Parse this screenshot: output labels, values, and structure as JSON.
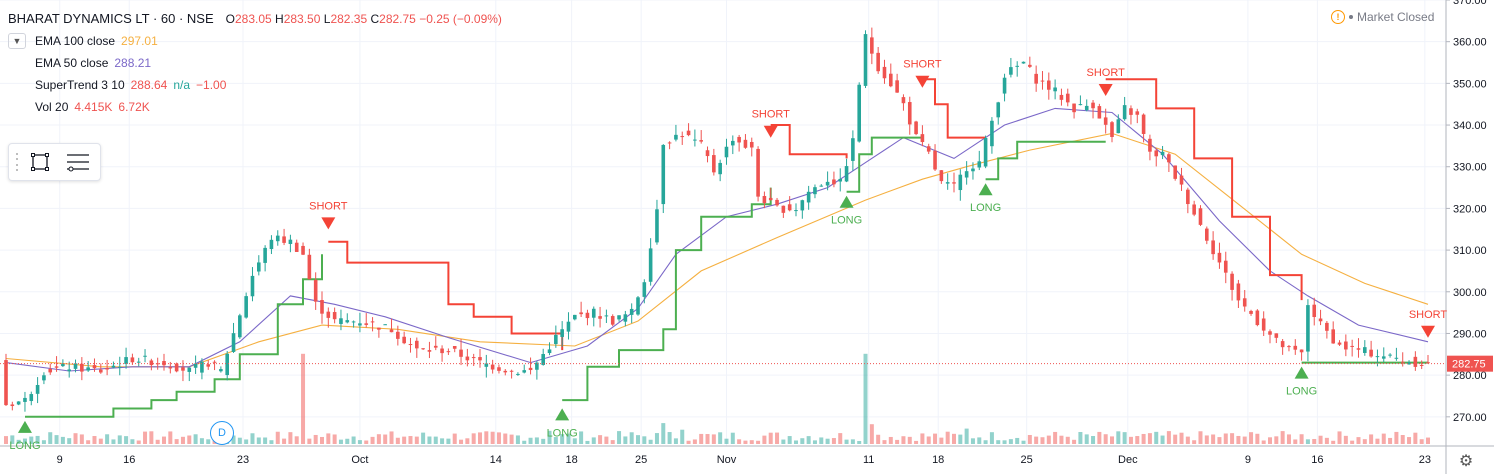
{
  "header": {
    "title": "BHARAT DYNAMICS LT · 60 · NSE",
    "open_label": "O",
    "open": "283.05",
    "high_label": "H",
    "high": "283.50",
    "low_label": "L",
    "low": "282.35",
    "close_label": "C",
    "close": "282.75",
    "change": "−0.25 (−0.09%)"
  },
  "legend": {
    "collapse_icon": "chevron-down-icon",
    "items": [
      {
        "label": "EMA 100 close",
        "values": [
          "297.01"
        ],
        "colors": [
          "#f5b041"
        ]
      },
      {
        "label": "EMA 50 close",
        "values": [
          "288.21"
        ],
        "colors": [
          "#7b68c8"
        ]
      },
      {
        "label": "SuperTrend 3 10",
        "values": [
          "288.64",
          "n/a",
          "−1.00"
        ],
        "colors": [
          "#ef5350",
          "#26a69a",
          "#ef5350"
        ]
      },
      {
        "label": "Vol 20",
        "values": [
          "4.415K",
          "6.72K"
        ],
        "colors": [
          "#ef5350",
          "#ef5350"
        ]
      }
    ]
  },
  "toolbox": {
    "icons": [
      "drag-grip-icon",
      "rectangle-icon",
      "list-lines-icon"
    ]
  },
  "market_status": {
    "icon": "warning-circle-icon",
    "text": "Market Closed"
  },
  "d_marker": "D",
  "settings_icon": "gear-icon",
  "colors": {
    "up": "#26a69a",
    "down": "#ef5350",
    "ema100": "#f5b041",
    "ema50": "#7b68c8",
    "st_up": "#4caf50",
    "st_down": "#f44336",
    "grid": "#f0f3fa",
    "price_line": "#ef5350"
  },
  "chart_data": {
    "type": "candlestick",
    "symbol": "BHARAT DYNAMICS LT",
    "interval": "60",
    "exchange": "NSE",
    "ylim": [
      263,
      370
    ],
    "y_ticks": [
      270,
      280,
      290,
      300,
      310,
      320,
      330,
      340,
      350,
      360,
      370
    ],
    "y_tick_labels": [
      "270.00",
      "280.00",
      "290.00",
      "300.00",
      "310.00",
      "320.00",
      "330.00",
      "340.00",
      "350.00",
      "360.00",
      "370.00"
    ],
    "x_tick_labels": [
      "9",
      "16",
      "23",
      "Oct",
      "14",
      "18",
      "25",
      "Nov",
      "11",
      "18",
      "25",
      "Dec",
      "9",
      "16",
      "23"
    ],
    "last_price": "282.75",
    "close_series": [
      {
        "t": 0,
        "v": 273
      },
      {
        "t": 3,
        "v": 274
      },
      {
        "t": 6,
        "v": 281
      },
      {
        "t": 10,
        "v": 282
      },
      {
        "t": 15,
        "v": 281
      },
      {
        "t": 20,
        "v": 284
      },
      {
        "t": 25,
        "v": 283
      },
      {
        "t": 29,
        "v": 281
      },
      {
        "t": 32,
        "v": 283
      },
      {
        "t": 34,
        "v": 281
      },
      {
        "t": 36,
        "v": 290
      },
      {
        "t": 39,
        "v": 304
      },
      {
        "t": 42,
        "v": 313
      },
      {
        "t": 45,
        "v": 312
      },
      {
        "t": 47,
        "v": 309
      },
      {
        "t": 49,
        "v": 297
      },
      {
        "t": 52,
        "v": 293
      },
      {
        "t": 56,
        "v": 293
      },
      {
        "t": 61,
        "v": 291
      },
      {
        "t": 65,
        "v": 286
      },
      {
        "t": 70,
        "v": 286
      },
      {
        "t": 75,
        "v": 283
      },
      {
        "t": 80,
        "v": 281
      },
      {
        "t": 83,
        "v": 281
      },
      {
        "t": 85,
        "v": 285
      },
      {
        "t": 87,
        "v": 289
      },
      {
        "t": 90,
        "v": 294
      },
      {
        "t": 93,
        "v": 295
      },
      {
        "t": 96,
        "v": 293
      },
      {
        "t": 99,
        "v": 295
      },
      {
        "t": 101,
        "v": 303
      },
      {
        "t": 103,
        "v": 320
      },
      {
        "t": 104,
        "v": 336
      },
      {
        "t": 107,
        "v": 338
      },
      {
        "t": 110,
        "v": 335
      },
      {
        "t": 112,
        "v": 329
      },
      {
        "t": 115,
        "v": 337
      },
      {
        "t": 118,
        "v": 334
      },
      {
        "t": 119,
        "v": 323
      },
      {
        "t": 122,
        "v": 320
      },
      {
        "t": 125,
        "v": 320
      },
      {
        "t": 127,
        "v": 324
      },
      {
        "t": 130,
        "v": 327
      },
      {
        "t": 132,
        "v": 326
      },
      {
        "t": 134,
        "v": 336
      },
      {
        "t": 135,
        "v": 350
      },
      {
        "t": 136,
        "v": 361
      },
      {
        "t": 138,
        "v": 354
      },
      {
        "t": 140,
        "v": 350
      },
      {
        "t": 142,
        "v": 345
      },
      {
        "t": 144,
        "v": 337
      },
      {
        "t": 146,
        "v": 333
      },
      {
        "t": 148,
        "v": 326
      },
      {
        "t": 150,
        "v": 325
      },
      {
        "t": 152,
        "v": 330
      },
      {
        "t": 154,
        "v": 331
      },
      {
        "t": 156,
        "v": 341
      },
      {
        "t": 158,
        "v": 352
      },
      {
        "t": 161,
        "v": 355
      },
      {
        "t": 163,
        "v": 351
      },
      {
        "t": 166,
        "v": 348
      },
      {
        "t": 169,
        "v": 344
      },
      {
        "t": 172,
        "v": 345
      },
      {
        "t": 175,
        "v": 337
      },
      {
        "t": 177,
        "v": 344
      },
      {
        "t": 179,
        "v": 342
      },
      {
        "t": 181,
        "v": 333
      },
      {
        "t": 183,
        "v": 333
      },
      {
        "t": 186,
        "v": 325
      },
      {
        "t": 189,
        "v": 316
      },
      {
        "t": 192,
        "v": 307
      },
      {
        "t": 195,
        "v": 298
      },
      {
        "t": 198,
        "v": 293
      },
      {
        "t": 201,
        "v": 288
      },
      {
        "t": 203,
        "v": 286
      },
      {
        "t": 205,
        "v": 285
      },
      {
        "t": 206,
        "v": 297
      },
      {
        "t": 208,
        "v": 292
      },
      {
        "t": 211,
        "v": 287
      },
      {
        "t": 214,
        "v": 286
      },
      {
        "t": 217,
        "v": 285
      },
      {
        "t": 220,
        "v": 284
      },
      {
        "t": 223,
        "v": 283
      },
      {
        "t": 225,
        "v": 282.75
      }
    ],
    "ema50": [
      {
        "t": 0,
        "v": 283
      },
      {
        "t": 10,
        "v": 281
      },
      {
        "t": 20,
        "v": 282
      },
      {
        "t": 29,
        "v": 282
      },
      {
        "t": 37,
        "v": 288
      },
      {
        "t": 45,
        "v": 299
      },
      {
        "t": 52,
        "v": 297
      },
      {
        "t": 60,
        "v": 294
      },
      {
        "t": 70,
        "v": 289
      },
      {
        "t": 83,
        "v": 283
      },
      {
        "t": 92,
        "v": 287
      },
      {
        "t": 100,
        "v": 296
      },
      {
        "t": 106,
        "v": 309
      },
      {
        "t": 114,
        "v": 318
      },
      {
        "t": 122,
        "v": 321
      },
      {
        "t": 130,
        "v": 325
      },
      {
        "t": 136,
        "v": 331
      },
      {
        "t": 142,
        "v": 337
      },
      {
        "t": 150,
        "v": 332
      },
      {
        "t": 158,
        "v": 340
      },
      {
        "t": 166,
        "v": 344
      },
      {
        "t": 175,
        "v": 343
      },
      {
        "t": 183,
        "v": 333
      },
      {
        "t": 192,
        "v": 317
      },
      {
        "t": 200,
        "v": 305
      },
      {
        "t": 206,
        "v": 299
      },
      {
        "t": 214,
        "v": 292
      },
      {
        "t": 225,
        "v": 288
      }
    ],
    "ema100": [
      {
        "t": 0,
        "v": 284
      },
      {
        "t": 15,
        "v": 282
      },
      {
        "t": 29,
        "v": 282
      },
      {
        "t": 40,
        "v": 288
      },
      {
        "t": 50,
        "v": 292
      },
      {
        "t": 62,
        "v": 291
      },
      {
        "t": 75,
        "v": 288
      },
      {
        "t": 90,
        "v": 287
      },
      {
        "t": 100,
        "v": 293
      },
      {
        "t": 110,
        "v": 305
      },
      {
        "t": 122,
        "v": 313
      },
      {
        "t": 136,
        "v": 322
      },
      {
        "t": 145,
        "v": 327
      },
      {
        "t": 152,
        "v": 330
      },
      {
        "t": 162,
        "v": 334
      },
      {
        "t": 175,
        "v": 338
      },
      {
        "t": 185,
        "v": 333
      },
      {
        "t": 195,
        "v": 321
      },
      {
        "t": 205,
        "v": 309
      },
      {
        "t": 215,
        "v": 302
      },
      {
        "t": 225,
        "v": 297
      }
    ],
    "supertrend": [
      {
        "dir": "up",
        "points": [
          {
            "t": 3,
            "v": 270
          },
          {
            "t": 15,
            "v": 270
          },
          {
            "t": 17,
            "v": 272
          },
          {
            "t": 23,
            "v": 274
          },
          {
            "t": 27,
            "v": 276
          },
          {
            "t": 33,
            "v": 279
          },
          {
            "t": 37,
            "v": 285
          },
          {
            "t": 43,
            "v": 297
          },
          {
            "t": 47,
            "v": 303
          },
          {
            "t": 50,
            "v": 309
          }
        ]
      },
      {
        "dir": "down",
        "points": [
          {
            "t": 51,
            "v": 312
          },
          {
            "t": 54,
            "v": 307
          },
          {
            "t": 66,
            "v": 307
          },
          {
            "t": 70,
            "v": 297
          },
          {
            "t": 74,
            "v": 294
          },
          {
            "t": 80,
            "v": 290
          },
          {
            "t": 88,
            "v": 286
          }
        ]
      },
      {
        "dir": "up",
        "points": [
          {
            "t": 88,
            "v": 274
          },
          {
            "t": 92,
            "v": 282
          },
          {
            "t": 97,
            "v": 286
          },
          {
            "t": 104,
            "v": 291
          },
          {
            "t": 106,
            "v": 310
          },
          {
            "t": 110,
            "v": 318
          },
          {
            "t": 118,
            "v": 321
          },
          {
            "t": 121,
            "v": 325
          }
        ]
      },
      {
        "dir": "down",
        "points": [
          {
            "t": 121,
            "v": 340
          },
          {
            "t": 124,
            "v": 333
          },
          {
            "t": 133,
            "v": 332
          }
        ]
      },
      {
        "dir": "up",
        "points": [
          {
            "t": 133,
            "v": 324
          },
          {
            "t": 135,
            "v": 333
          },
          {
            "t": 137,
            "v": 337
          },
          {
            "t": 145,
            "v": 337
          }
        ]
      },
      {
        "dir": "down",
        "points": [
          {
            "t": 145,
            "v": 351
          },
          {
            "t": 147,
            "v": 345
          },
          {
            "t": 149,
            "v": 337
          },
          {
            "t": 155,
            "v": 337
          }
        ]
      },
      {
        "dir": "up",
        "points": [
          {
            "t": 155,
            "v": 327
          },
          {
            "t": 157,
            "v": 332
          },
          {
            "t": 160,
            "v": 336
          },
          {
            "t": 174,
            "v": 336
          }
        ]
      },
      {
        "dir": "down",
        "points": [
          {
            "t": 174,
            "v": 351
          },
          {
            "t": 178,
            "v": 351
          },
          {
            "t": 182,
            "v": 344
          },
          {
            "t": 188,
            "v": 332
          },
          {
            "t": 194,
            "v": 318
          },
          {
            "t": 200,
            "v": 304
          },
          {
            "t": 205,
            "v": 298
          }
        ]
      },
      {
        "dir": "up",
        "points": [
          {
            "t": 205,
            "v": 283
          },
          {
            "t": 225,
            "v": 283
          }
        ]
      }
    ],
    "signals": [
      {
        "type": "long",
        "label": "LONG",
        "t": 3,
        "v": 270
      },
      {
        "type": "short",
        "label": "SHORT",
        "t": 51,
        "v": 314
      },
      {
        "type": "long",
        "label": "LONG",
        "t": 88,
        "v": 273
      },
      {
        "type": "short",
        "label": "SHORT",
        "t": 121,
        "v": 336
      },
      {
        "type": "long",
        "label": "LONG",
        "t": 133,
        "v": 324
      },
      {
        "type": "short",
        "label": "SHORT",
        "t": 145,
        "v": 348
      },
      {
        "type": "long",
        "label": "LONG",
        "t": 155,
        "v": 327
      },
      {
        "type": "short",
        "label": "SHORT",
        "t": 174,
        "v": 346
      },
      {
        "type": "long",
        "label": "LONG",
        "t": 205,
        "v": 283
      },
      {
        "type": "short",
        "label": "SHORT",
        "t": 225,
        "v": 288
      }
    ],
    "volume_spikes": [
      {
        "t": 47,
        "h": 0.82
      },
      {
        "t": 104,
        "h": 0.19
      },
      {
        "t": 136,
        "h": 0.82
      },
      {
        "t": 137,
        "h": 0.18
      },
      {
        "t": 152,
        "h": 0.14
      },
      {
        "t": 86,
        "h": 0.12
      },
      {
        "t": 107,
        "h": 0.13
      }
    ]
  }
}
